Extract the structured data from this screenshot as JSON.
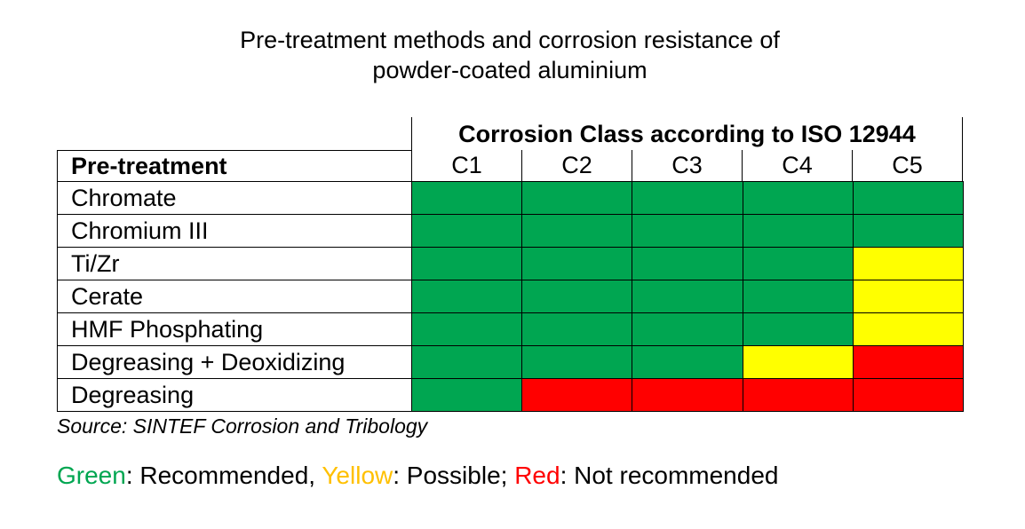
{
  "title": {
    "line1": "Pre-treatment methods and corrosion resistance of",
    "line2": "powder-coated aluminium"
  },
  "chart_data": {
    "type": "table",
    "column_group_header": "Corrosion Class according to ISO 12944",
    "row_header": "Pre-treatment",
    "columns": [
      "C1",
      "C2",
      "C3",
      "C4",
      "C5"
    ],
    "rows": [
      {
        "label": "Chromate",
        "ratings": [
          "green",
          "green",
          "green",
          "green",
          "green"
        ]
      },
      {
        "label": "Chromium III",
        "ratings": [
          "green",
          "green",
          "green",
          "green",
          "green"
        ]
      },
      {
        "label": "Ti/Zr",
        "ratings": [
          "green",
          "green",
          "green",
          "green",
          "yellow"
        ]
      },
      {
        "label": "Cerate",
        "ratings": [
          "green",
          "green",
          "green",
          "green",
          "yellow"
        ]
      },
      {
        "label": "HMF Phosphating",
        "ratings": [
          "green",
          "green",
          "green",
          "green",
          "yellow"
        ]
      },
      {
        "label": "Degreasing + Deoxidizing",
        "ratings": [
          "green",
          "green",
          "green",
          "yellow",
          "red"
        ]
      },
      {
        "label": "Degreasing",
        "ratings": [
          "green",
          "red",
          "red",
          "red",
          "red"
        ]
      }
    ]
  },
  "colors": {
    "green": "#00a651",
    "yellow": "#ffff00",
    "red": "#ff0000",
    "legend_green": "#00a651",
    "legend_yellow": "#ffc000",
    "legend_red": "#ff0000"
  },
  "source": "Source: SINTEF Corrosion and Tribology",
  "legend": {
    "green_word": "Green",
    "green_text": ": Recommended, ",
    "yellow_word": "Yellow",
    "yellow_text": ": Possible; ",
    "red_word": "Red",
    "red_text": ": Not recommended"
  }
}
